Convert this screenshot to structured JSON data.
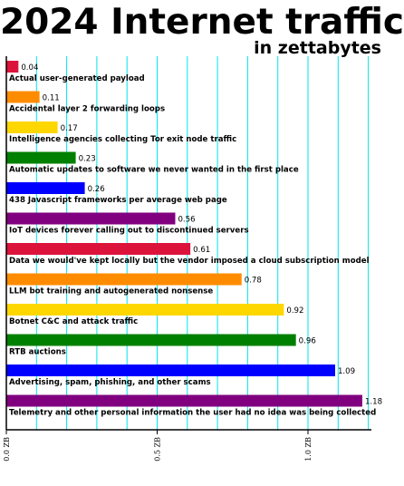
{
  "chart_data": {
    "type": "bar",
    "orientation": "horizontal",
    "title": "2024 Internet traffic",
    "subtitle": "in zettabytes",
    "categories": [
      "Actual user-generated payload",
      "Accidental layer 2 forwarding loops",
      "Intelligence agencies collecting Tor exit node traffic",
      "Automatic updates to software we never wanted in the first place",
      "438 Javascript frameworks per average web page",
      "IoT devices forever calling out to discontinued servers",
      "Data we would've kept locally but the vendor imposed a cloud subscription model",
      "LLM bot training and autogenerated nonsense",
      "Botnet C&C and attack traffic",
      "RTB auctions",
      "Advertising, spam, phishing, and other scams",
      "Telemetry and other personal information the user had no idea was being collected"
    ],
    "values": [
      0.04,
      0.11,
      0.17,
      0.23,
      0.26,
      0.56,
      0.61,
      0.78,
      0.92,
      0.96,
      1.09,
      1.18
    ],
    "value_labels": [
      "0.04",
      "0.11",
      "0.17",
      "0.23",
      "0.26",
      "0.56",
      "0.61",
      "0.78",
      "0.92",
      "0.96",
      "1.09",
      "1.18"
    ],
    "colors": [
      "#dc143c",
      "#ff8c00",
      "#ffd700",
      "#008000",
      "#0000ff",
      "#800080",
      "#dc143c",
      "#ff8c00",
      "#ffd700",
      "#008000",
      "#0000ff",
      "#800080"
    ],
    "xlim": [
      0,
      1.2
    ],
    "tick_values": [
      0.0,
      0.5,
      1.0
    ],
    "tick_labels": [
      "0.0 ZB",
      "0.5 ZB",
      "1.0 ZB"
    ],
    "grid_color": "#00e5ee",
    "grid": true
  }
}
